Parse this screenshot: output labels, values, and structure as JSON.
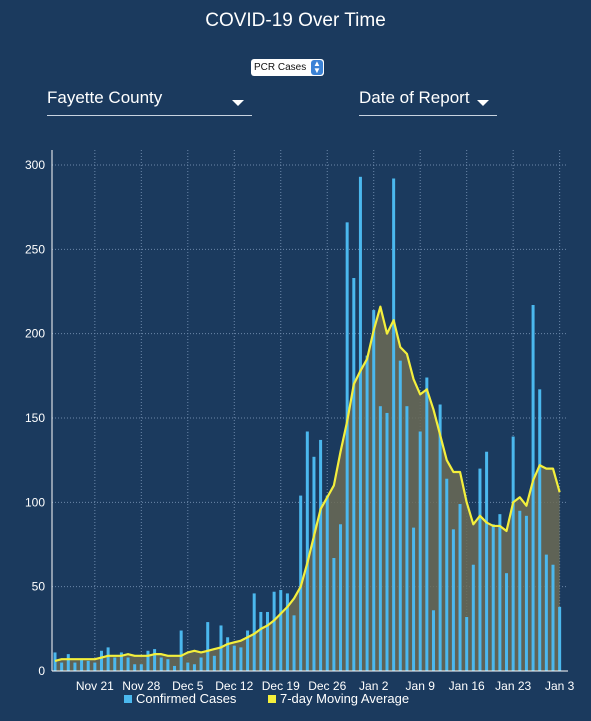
{
  "title": "COVID-19 Over Time",
  "case_type_select": {
    "value": "PCR Cases"
  },
  "county_dropdown": {
    "value": "Fayette County"
  },
  "date_dropdown": {
    "value": "Date of Report"
  },
  "legend": {
    "confirmed": "Confirmed Cases",
    "moving_average": "7-day Moving Average"
  },
  "colors": {
    "background": "#1b3a5e",
    "bars": "#4bb8ee",
    "moving_average": "#f4ef3c",
    "average_fill": "#6b6b55"
  },
  "chart_data": {
    "type": "bar",
    "title": "COVID-19 Over Time",
    "xlabel": "",
    "ylabel": "",
    "ylim": [
      0,
      320
    ],
    "yticks": [
      0,
      50,
      100,
      150,
      200,
      250,
      300
    ],
    "x_ticks": [
      "Nov 21",
      "Nov 28",
      "Dec 5",
      "Dec 12",
      "Dec 19",
      "Dec 26",
      "Jan 2",
      "Jan 9",
      "Jan 16",
      "Jan 23",
      "Jan 3"
    ],
    "x_tick_day_index": [
      6,
      13,
      20,
      27,
      34,
      41,
      48,
      55,
      62,
      69,
      76
    ],
    "grid": true,
    "legend_position": "bottom",
    "series": [
      {
        "name": "Confirmed Cases",
        "type": "bar",
        "values": [
          11,
          5,
          10,
          5,
          7,
          6,
          5,
          12,
          14,
          8,
          11,
          8,
          4,
          4,
          12,
          13,
          8,
          7,
          3,
          24,
          5,
          4,
          8,
          29,
          9,
          27,
          20,
          15,
          14,
          24,
          46,
          35,
          35,
          47,
          48,
          46,
          33,
          104,
          142,
          127,
          137,
          104,
          67,
          87,
          266,
          233,
          293,
          187,
          214,
          157,
          153,
          292,
          184,
          157,
          85,
          142,
          174,
          36,
          158,
          114,
          84,
          99,
          32,
          63,
          120,
          130,
          87,
          93,
          58,
          139,
          95,
          92,
          217,
          167,
          69,
          63,
          38
        ]
      },
      {
        "name": "7-day Moving Average",
        "type": "line",
        "values": [
          6,
          7,
          7,
          7,
          7,
          7,
          7,
          8,
          9,
          9,
          9,
          10,
          9,
          9,
          9,
          10,
          10,
          9,
          9,
          9,
          11,
          12,
          11,
          12,
          13,
          14,
          16,
          17,
          18,
          20,
          22,
          25,
          27,
          30,
          34,
          38,
          43,
          50,
          64,
          80,
          96,
          103,
          110,
          130,
          148,
          170,
          178,
          185,
          202,
          216,
          200,
          208,
          192,
          188,
          173,
          164,
          167,
          155,
          140,
          125,
          118,
          118,
          100,
          87,
          92,
          88,
          86,
          86,
          83,
          100,
          103,
          98,
          113,
          122,
          120,
          120,
          106
        ]
      }
    ]
  }
}
